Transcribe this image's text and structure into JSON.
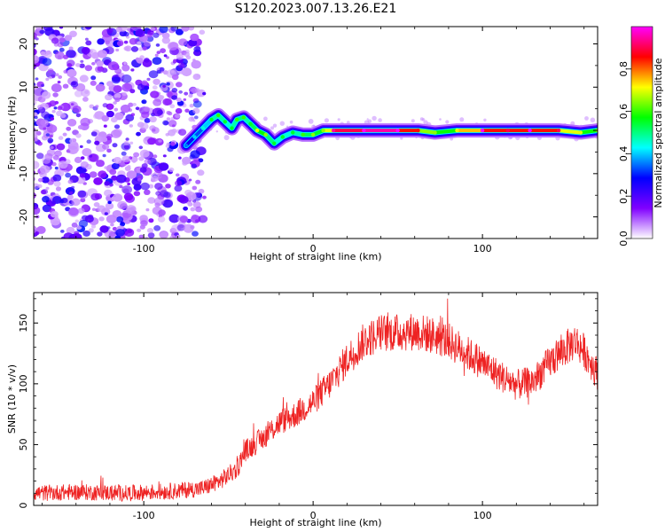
{
  "title": "S120.2023.007.13.26.E21",
  "chart_data": [
    {
      "type": "heatmap",
      "name": "spectrogram",
      "xlabel": "Height of straight line (km)",
      "ylabel": "Frequency (Hz)",
      "xlim": [
        -165,
        168
      ],
      "ylim": [
        -25,
        24
      ],
      "xticks": [
        -100,
        0,
        100
      ],
      "yticks": [
        -20,
        -10,
        0,
        10,
        20
      ],
      "noise_region_x": [
        -165,
        -72
      ],
      "ridge": [
        {
          "x": -75,
          "y": -3.5,
          "a": 0.25
        },
        {
          "x": -70,
          "y": -1.5,
          "a": 0.3
        },
        {
          "x": -65,
          "y": 0.5,
          "a": 0.35
        },
        {
          "x": -60,
          "y": 2.5,
          "a": 0.45
        },
        {
          "x": -56,
          "y": 3.5,
          "a": 0.5
        },
        {
          "x": -52,
          "y": 2.0,
          "a": 0.45
        },
        {
          "x": -48,
          "y": 0.5,
          "a": 0.45
        },
        {
          "x": -45,
          "y": 2.5,
          "a": 0.5
        },
        {
          "x": -41,
          "y": 3.0,
          "a": 0.5
        },
        {
          "x": -37,
          "y": 1.5,
          "a": 0.45
        },
        {
          "x": -33,
          "y": 0.0,
          "a": 0.6
        },
        {
          "x": -28,
          "y": -1.0,
          "a": 0.55
        },
        {
          "x": -23,
          "y": -3.0,
          "a": 0.45
        },
        {
          "x": -18,
          "y": -1.5,
          "a": 0.45
        },
        {
          "x": -12,
          "y": -0.5,
          "a": 0.45
        },
        {
          "x": -6,
          "y": -1.0,
          "a": 0.5
        },
        {
          "x": 0,
          "y": -1.0,
          "a": 0.55
        },
        {
          "x": 6,
          "y": 0.0,
          "a": 0.55
        },
        {
          "x": 12,
          "y": 0.0,
          "a": 0.85
        },
        {
          "x": 30,
          "y": 0.0,
          "a": 0.95
        },
        {
          "x": 50,
          "y": 0.0,
          "a": 0.95
        },
        {
          "x": 62,
          "y": 0.0,
          "a": 0.75
        },
        {
          "x": 72,
          "y": -0.5,
          "a": 0.55
        },
        {
          "x": 85,
          "y": 0.0,
          "a": 0.6
        },
        {
          "x": 100,
          "y": 0.0,
          "a": 0.9
        },
        {
          "x": 115,
          "y": 0.0,
          "a": 0.8
        },
        {
          "x": 128,
          "y": 0.0,
          "a": 0.9
        },
        {
          "x": 145,
          "y": 0.0,
          "a": 0.8
        },
        {
          "x": 158,
          "y": -0.5,
          "a": 0.6
        },
        {
          "x": 168,
          "y": 0.0,
          "a": 0.55
        }
      ],
      "colorbar": {
        "label": "Normalized spectral amplitude",
        "range": [
          0,
          1
        ],
        "ticks": [
          "0.0",
          "0.2",
          "0.4",
          "0.6",
          "0.8"
        ],
        "tick_values": [
          0.0,
          0.2,
          0.4,
          0.6,
          0.8
        ],
        "colors": [
          "#ffffff",
          "#8000ff",
          "#0000ff",
          "#00ffff",
          "#00ff00",
          "#ffff00",
          "#ff0000",
          "#ff00ff"
        ]
      }
    },
    {
      "type": "line",
      "name": "snr",
      "xlabel": "Height of straight line (km)",
      "ylabel": "SNR (10 * v/v)",
      "xlim": [
        -165,
        168
      ],
      "ylim": [
        0,
        175
      ],
      "xticks": [
        -100,
        0,
        100
      ],
      "yticks": [
        0,
        50,
        100,
        150
      ],
      "color": "#ee2222",
      "envelope": {
        "x": [
          -165,
          -140,
          -110,
          -80,
          -65,
          -55,
          -45,
          -40,
          -30,
          -20,
          -10,
          0,
          10,
          20,
          30,
          40,
          50,
          60,
          70,
          80,
          90,
          100,
          110,
          120,
          130,
          140,
          150,
          155,
          160,
          168
        ],
        "y": [
          10,
          11,
          10,
          12,
          14,
          20,
          30,
          45,
          55,
          68,
          75,
          85,
          100,
          120,
          135,
          142,
          142,
          143,
          140,
          135,
          126,
          117,
          107,
          99,
          102,
          118,
          130,
          135,
          127,
          108
        ]
      },
      "noise_amplitude": 12
    }
  ]
}
